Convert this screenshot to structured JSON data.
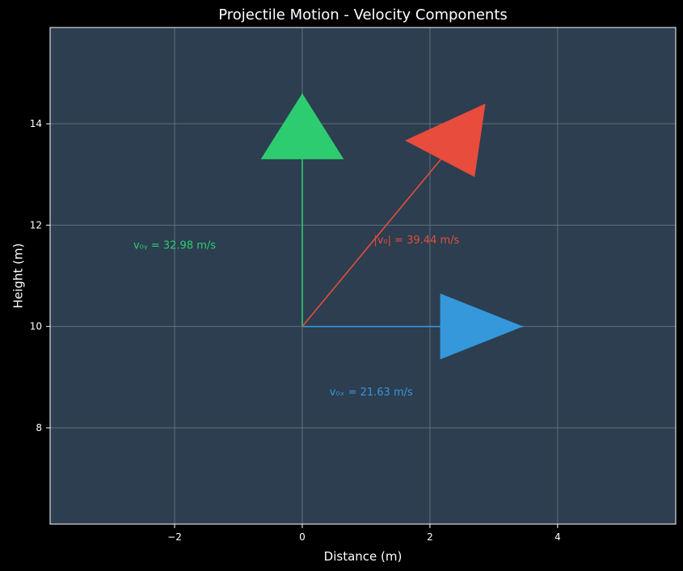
{
  "chart_data": {
    "type": "vector",
    "title": "Projectile Motion - Velocity Components",
    "xlabel": "Distance (m)",
    "ylabel": "Height (m)",
    "xlim": [
      -3.95,
      5.85
    ],
    "ylim": [
      6.1,
      15.9
    ],
    "xticks": [
      -2,
      0,
      2,
      4
    ],
    "xtick_labels": [
      "−2",
      "0",
      "2",
      "4"
    ],
    "yticks": [
      8,
      10,
      12,
      14
    ],
    "ytick_labels": [
      "8",
      "10",
      "12",
      "14"
    ],
    "grid": true,
    "colors": {
      "background": "#000000",
      "plot_background": "#2c3e50",
      "grid": "#5f6f7d",
      "frame": "#ffffff",
      "text": "#ffffff"
    },
    "vectors": [
      {
        "id": "v0x",
        "color": "#3498db",
        "start": [
          0,
          10
        ],
        "end": [
          3.46,
          10
        ],
        "head": {
          "tip": [
            3.46,
            10
          ],
          "base_left": [
            2.16,
            10.65
          ],
          "base_right": [
            2.16,
            9.35
          ]
        },
        "label": "v₀ₓ = 21.63 m/s",
        "label_pos": [
          1.08,
          8.7
        ]
      },
      {
        "id": "v0y",
        "color": "#2ecc71",
        "start": [
          0,
          10
        ],
        "end": [
          0,
          14.6
        ],
        "head": {
          "tip": [
            0,
            14.6
          ],
          "base_left": [
            -0.65,
            13.3
          ],
          "base_right": [
            0.65,
            13.3
          ]
        },
        "label": "v₀ᵧ = 32.98 m/s",
        "label_pos": [
          -2.0,
          11.6
        ]
      },
      {
        "id": "v0",
        "color": "#e74c3c",
        "start": [
          0,
          10
        ],
        "end": [
          2.29,
          13.48
        ],
        "head": {
          "tip": [
            2.87,
            14.4
          ],
          "base_left": [
            1.61,
            13.67
          ],
          "base_right": [
            2.7,
            12.95
          ]
        },
        "label": "|v₀| = 39.44 m/s",
        "label_pos": [
          1.79,
          11.7
        ]
      }
    ]
  }
}
